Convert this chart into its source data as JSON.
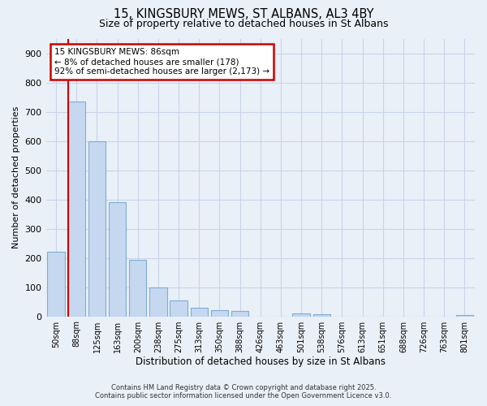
{
  "title_line1": "15, KINGSBURY MEWS, ST ALBANS, AL3 4BY",
  "title_line2": "Size of property relative to detached houses in St Albans",
  "xlabel": "Distribution of detached houses by size in St Albans",
  "ylabel": "Number of detached properties",
  "categories": [
    "50sqm",
    "88sqm",
    "125sqm",
    "163sqm",
    "200sqm",
    "238sqm",
    "275sqm",
    "313sqm",
    "350sqm",
    "388sqm",
    "426sqm",
    "463sqm",
    "501sqm",
    "538sqm",
    "576sqm",
    "613sqm",
    "651sqm",
    "688sqm",
    "726sqm",
    "763sqm",
    "801sqm"
  ],
  "values": [
    222,
    735,
    600,
    390,
    193,
    98,
    55,
    30,
    22,
    18,
    0,
    0,
    10,
    8,
    0,
    0,
    0,
    0,
    0,
    0,
    5
  ],
  "bar_color": "#c5d8f0",
  "bar_edge_color": "#7dadd4",
  "annotation_line1": "15 KINGSBURY MEWS: 86sqm",
  "annotation_line2": "← 8% of detached houses are smaller (178)",
  "annotation_line3": "92% of semi-detached houses are larger (2,173) →",
  "annotation_box_color": "#ffffff",
  "annotation_box_edge": "#cc0000",
  "vline_color": "#cc0000",
  "grid_color": "#c8d4e8",
  "background_color": "#eaf0f8",
  "footnote1": "Contains HM Land Registry data © Crown copyright and database right 2025.",
  "footnote2": "Contains public sector information licensed under the Open Government Licence v3.0.",
  "ylim": [
    0,
    950
  ],
  "yticks": [
    0,
    100,
    200,
    300,
    400,
    500,
    600,
    700,
    800,
    900
  ]
}
